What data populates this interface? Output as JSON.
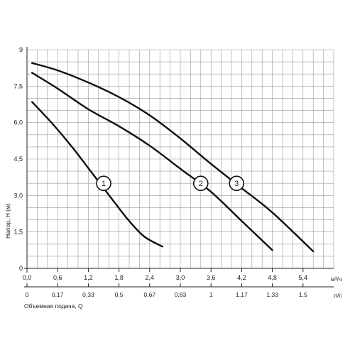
{
  "chart_data": {
    "type": "line",
    "ylabel": "Напор, Н (м)",
    "xlabel": "Объемная подача, Q",
    "x_unit": "м³/ч",
    "x2_unit": "л/с",
    "xlim": [
      0,
      6.0
    ],
    "ylim": [
      0,
      9
    ],
    "x_ticks": [
      "0,0",
      "0,6",
      "1,2",
      "1,8",
      "2,4",
      "3,0",
      "3,6",
      "4,2",
      "4,8",
      "5,4"
    ],
    "x_tick_values": [
      0,
      0.6,
      1.2,
      1.8,
      2.4,
      3.0,
      3.6,
      4.2,
      4.8,
      5.4
    ],
    "x2_ticks": [
      "0",
      "0,17",
      "0,33",
      "0,5",
      "0,67",
      "0,83",
      "1",
      "1,17",
      "1,33",
      "1,5"
    ],
    "y_ticks": [
      "0",
      "1,5",
      "3,0",
      "4,5",
      "6,0",
      "7,5",
      "9"
    ],
    "y_tick_values": [
      0,
      1.5,
      3.0,
      4.5,
      6.0,
      7.5,
      9
    ],
    "grid": true,
    "grid_step_x": 0.2,
    "grid_step_y": 0.5,
    "series": [
      {
        "name": "1",
        "color": "#111111",
        "label_at": [
          1.5,
          3.5
        ],
        "x": [
          0.1,
          0.5,
          0.9,
          1.3,
          1.7,
          2.0,
          2.3,
          2.65
        ],
        "y": [
          6.85,
          5.95,
          4.95,
          3.85,
          2.75,
          1.95,
          1.3,
          0.9
        ]
      },
      {
        "name": "2",
        "color": "#111111",
        "label_at": [
          3.4,
          3.5
        ],
        "x": [
          0.1,
          0.6,
          1.2,
          1.8,
          2.4,
          3.0,
          3.6,
          4.2,
          4.8
        ],
        "y": [
          8.05,
          7.4,
          6.55,
          5.85,
          5.05,
          4.1,
          3.15,
          1.95,
          0.75
        ]
      },
      {
        "name": "3",
        "color": "#111111",
        "label_at": [
          4.1,
          3.5
        ],
        "x": [
          0.1,
          0.6,
          1.2,
          1.8,
          2.4,
          3.0,
          3.6,
          4.2,
          4.8,
          5.6
        ],
        "y": [
          8.45,
          8.15,
          7.65,
          7.05,
          6.3,
          5.35,
          4.3,
          3.3,
          2.3,
          0.7
        ]
      }
    ]
  }
}
